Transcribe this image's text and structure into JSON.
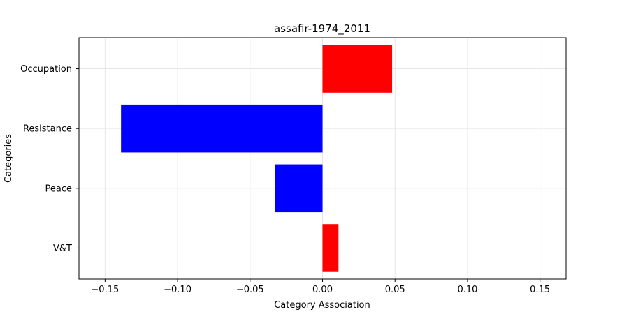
{
  "chart_data": {
    "type": "bar",
    "orientation": "horizontal",
    "title": "assafir-1974_2011",
    "xlabel": "Category Association",
    "ylabel": "Categories",
    "categories": [
      "Occupation",
      "Resistance ",
      "Peace",
      "V&T"
    ],
    "values": [
      0.048,
      -0.139,
      -0.033,
      0.011
    ],
    "xlim": [
      -0.168,
      0.168
    ],
    "xticks": [
      -0.15,
      -0.1,
      -0.05,
      0.0,
      0.05,
      0.1,
      0.15
    ],
    "xtick_labels": [
      "−0.15",
      "−0.10",
      "−0.05",
      "0.00",
      "0.05",
      "0.10",
      "0.15"
    ],
    "grid": true,
    "legend": "none",
    "colors": {
      "positive": "#ff0000",
      "negative": "#0000ff",
      "grid": "#e6e6e6",
      "axis": "#000000"
    }
  }
}
